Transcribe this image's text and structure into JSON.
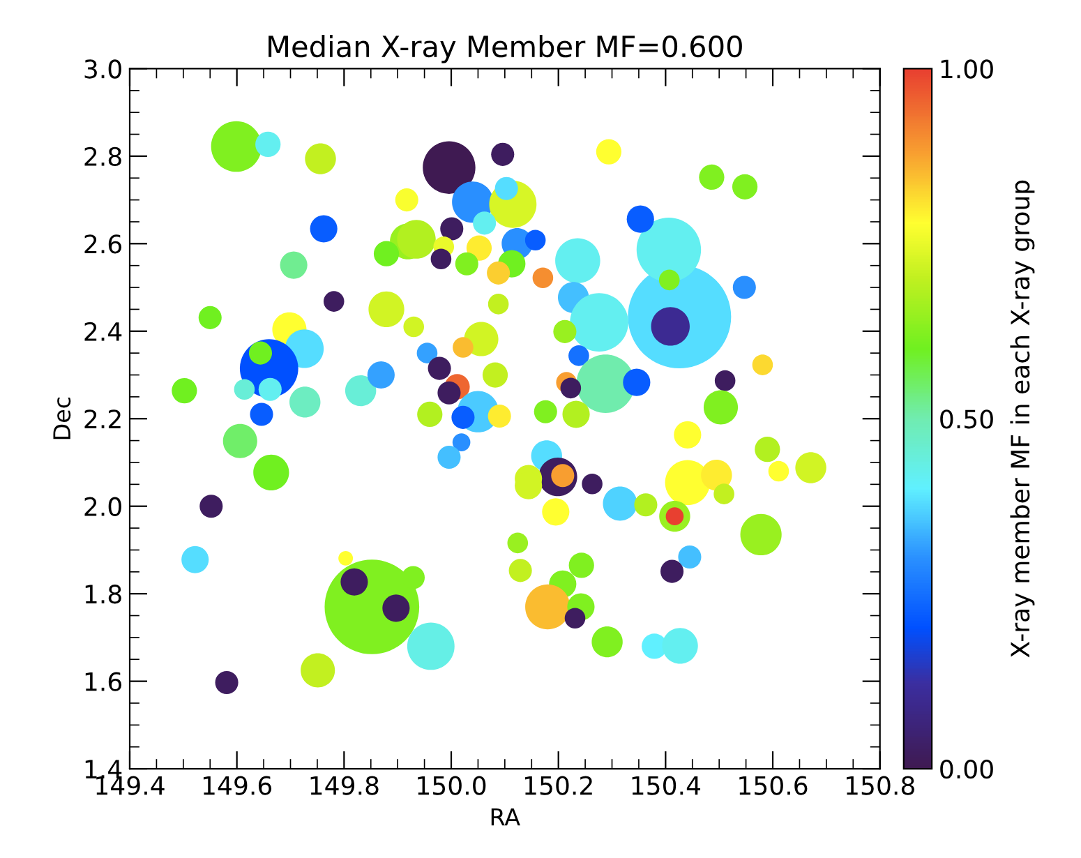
{
  "chart_data": {
    "type": "bubble",
    "title": "Median X-ray Member MF=0.600",
    "xlabel": "RA",
    "ylabel": "Dec",
    "clabel": "X-ray member MF in each X-ray group",
    "xlim": [
      149.4,
      150.8
    ],
    "ylim": [
      1.4,
      3.0
    ],
    "xticks": [
      149.4,
      149.6,
      149.8,
      {
        "value": 150.0,
        "label": "150.0"
      },
      150.2,
      150.4,
      150.6,
      150.8
    ],
    "yticks": [
      1.4,
      1.6,
      1.8,
      {
        "value": 2.0,
        "label": "2.0"
      },
      2.2,
      2.4,
      2.6,
      2.8,
      {
        "value": 3.0,
        "label": "3.0"
      }
    ],
    "clim": [
      0,
      1
    ],
    "cticks": [
      {
        "value": 0,
        "label": "0.00"
      },
      {
        "value": 0.5,
        "label": "0.50"
      },
      {
        "value": 1,
        "label": "1.00"
      }
    ],
    "marker": "circle",
    "x": [
      150.426,
      150.409,
      149.852,
      149.819,
      149.897,
      150.406,
      150.407,
      149.599,
      149.658,
      149.756,
      149.996,
      150.096,
      149.917,
      150.04,
      150.115,
      150.103,
      150.062,
      150.001,
      149.762,
      149.919,
      149.935,
      149.879,
      149.986,
      149.981,
      150.052,
      150.029,
      150.123,
      150.157,
      150.113,
      150.088,
      149.706,
      149.781,
      149.879,
      149.93,
      150.088,
      149.55,
      149.698,
      149.726,
      149.66,
      149.644,
      150.056,
      150.022,
      149.955,
      149.978,
      150.011,
      149.996,
      150.082,
      149.502,
      149.614,
      149.662,
      149.727,
      149.831,
      149.869,
      149.646,
      149.606,
      149.96,
      150.05,
      150.022,
      150.09,
      149.664,
      149.552,
      149.522,
      149.803,
      149.929,
      149.962,
      149.751,
      149.581,
      150.019,
      149.996,
      150.294,
      150.486,
      150.548,
      150.353,
      150.547,
      150.236,
      150.171,
      150.228,
      150.276,
      150.212,
      150.238,
      150.288,
      150.346,
      150.215,
      150.223,
      150.581,
      150.511,
      150.503,
      150.176,
      150.233,
      150.441,
      150.59,
      150.611,
      150.671,
      150.441,
      150.495,
      150.509,
      150.578,
      150.178,
      150.199,
      150.208,
      150.144,
      150.144,
      150.263,
      150.195,
      150.315,
      150.363,
      150.417,
      150.417,
      150.124,
      150.129,
      150.445,
      150.412,
      150.243,
      150.208,
      150.18,
      150.242,
      150.231,
      150.291,
      150.379,
      150.427
    ],
    "values": [
      2.433,
      2.411,
      1.77,
      1.827,
      1.767,
      2.586,
      2.517,
      2.822,
      2.827,
      2.794,
      2.774,
      2.804,
      2.7,
      2.695,
      2.69,
      2.726,
      2.647,
      2.634,
      2.634,
      2.605,
      2.61,
      2.577,
      2.593,
      2.565,
      2.59,
      2.554,
      2.6,
      2.608,
      2.554,
      2.533,
      2.551,
      2.468,
      2.45,
      2.41,
      2.462,
      2.431,
      2.404,
      2.36,
      2.315,
      2.35,
      2.382,
      2.363,
      2.35,
      2.315,
      2.273,
      2.259,
      2.3,
      2.264,
      2.267,
      2.267,
      2.238,
      2.264,
      2.3,
      2.21,
      2.149,
      2.21,
      2.216,
      2.203,
      2.206,
      2.077,
      2.0,
      1.878,
      1.881,
      1.837,
      1.68,
      1.625,
      1.597,
      2.146,
      2.112,
      2.81,
      2.752,
      2.73,
      2.656,
      2.5,
      2.561,
      2.522,
      2.477,
      2.42,
      2.399,
      2.344,
      2.28,
      2.283,
      2.283,
      2.27,
      2.323,
      2.287,
      2.226,
      2.216,
      2.21,
      2.163,
      2.13,
      2.08,
      2.088,
      2.054,
      2.071,
      2.028,
      1.935,
      2.115,
      2.067,
      2.07,
      2.063,
      2.047,
      2.051,
      1.987,
      2.006,
      2.003,
      1.977,
      1.977,
      1.916,
      1.853,
      1.884,
      1.851,
      1.865,
      1.822,
      1.77,
      1.77,
      1.744,
      1.69,
      1.68,
      1.681
    ],
    "sizes": [
      1,
      0.14,
      0.84,
      0.07,
      0.07,
      0.39,
      0.04,
      0.24,
      0.06,
      0.09,
      0.26,
      0.05,
      0.05,
      0.16,
      0.21,
      0.05,
      0.05,
      0.05,
      0.07,
      0.12,
      0.14,
      0.06,
      0.04,
      0.04,
      0.06,
      0.05,
      0.09,
      0.04,
      0.07,
      0.05,
      0.07,
      0.04,
      0.12,
      0.04,
      0.04,
      0.05,
      0.11,
      0.14,
      0.32,
      0.05,
      0.11,
      0.04,
      0.04,
      0.05,
      0.06,
      0.05,
      0.06,
      0.06,
      0.04,
      0.05,
      0.09,
      0.09,
      0.07,
      0.05,
      0.11,
      0.06,
      0.16,
      0.05,
      0.05,
      0.12,
      0.05,
      0.07,
      0.02,
      0.05,
      0.21,
      0.11,
      0.05,
      0.03,
      0.05,
      0.06,
      0.06,
      0.06,
      0.07,
      0.05,
      0.19,
      0.04,
      0.09,
      0.32,
      0.05,
      0.04,
      0.32,
      0.07,
      0.04,
      0.04,
      0.04,
      0.04,
      0.11,
      0.05,
      0.07,
      0.07,
      0.06,
      0.04,
      0.09,
      0.19,
      0.09,
      0.04,
      0.16,
      0.09,
      0.14,
      0.05,
      0.07,
      0.07,
      0.04,
      0.07,
      0.11,
      0.05,
      0.09,
      0.03,
      0.04,
      0.05,
      0.05,
      0.05,
      0.06,
      0.07,
      0.19,
      0.07,
      0.04,
      0.09,
      0.06,
      0.12
    ],
    "cvalues": [
      0.38,
      0.1,
      0.62,
      0.02,
      0.02,
      0.42,
      0.62,
      0.62,
      0.42,
      0.7,
      0.0,
      0.02,
      0.77,
      0.3,
      0.73,
      0.38,
      0.42,
      0.02,
      0.22,
      0.65,
      0.68,
      0.6,
      0.75,
      0.02,
      0.8,
      0.62,
      0.3,
      0.22,
      0.6,
      0.83,
      0.52,
      0.02,
      0.72,
      0.72,
      0.7,
      0.6,
      0.78,
      0.38,
      0.2,
      0.6,
      0.72,
      0.85,
      0.32,
      0.02,
      0.95,
      0.02,
      0.7,
      0.6,
      0.45,
      0.42,
      0.48,
      0.45,
      0.32,
      0.22,
      0.55,
      0.68,
      0.36,
      0.22,
      0.8,
      0.6,
      0.02,
      0.38,
      0.78,
      0.62,
      0.43,
      0.7,
      0.02,
      0.3,
      0.35,
      0.78,
      0.62,
      0.62,
      0.22,
      0.3,
      0.42,
      0.9,
      0.35,
      0.42,
      0.65,
      0.25,
      0.5,
      0.22,
      0.88,
      0.02,
      0.82,
      0.02,
      0.62,
      0.62,
      0.68,
      0.78,
      0.68,
      0.78,
      0.72,
      0.78,
      0.8,
      0.7,
      0.65,
      0.38,
      0.02,
      0.88,
      0.72,
      0.72,
      0.02,
      0.78,
      0.37,
      0.68,
      0.65,
      1.0,
      0.65,
      0.7,
      0.35,
      0.02,
      0.62,
      0.62,
      0.85,
      0.62,
      0.02,
      0.62,
      0.4,
      0.42
    ]
  }
}
